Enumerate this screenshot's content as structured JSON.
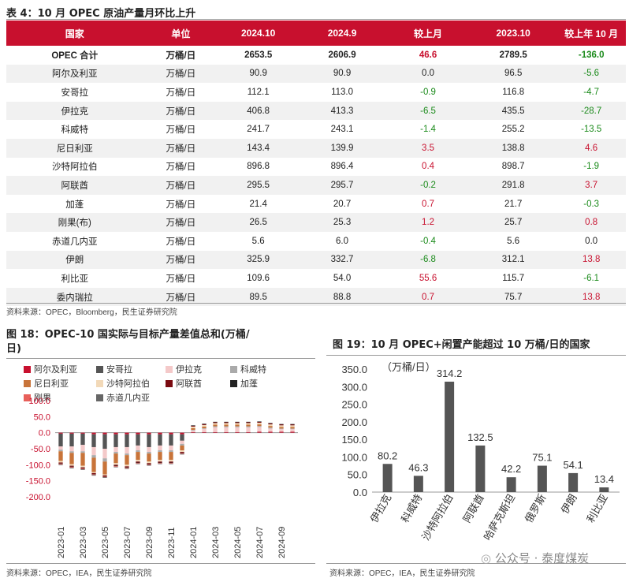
{
  "table": {
    "caption": "表 4：10 月 OPEC 原油产量月环比上升",
    "headers": [
      "国家",
      "单位",
      "2024.10",
      "2024.9",
      "较上月",
      "2023.10",
      "较上年 10 月"
    ],
    "rows": [
      [
        "OPEC 合计",
        "万桶/日",
        "2653.5",
        "2606.9",
        "46.6",
        "2789.5",
        "-136.0"
      ],
      [
        "阿尔及利亚",
        "万桶/日",
        "90.9",
        "90.9",
        "0.0",
        "96.5",
        "-5.6"
      ],
      [
        "安哥拉",
        "万桶/日",
        "112.1",
        "113.0",
        "-0.9",
        "116.8",
        "-4.7"
      ],
      [
        "伊拉克",
        "万桶/日",
        "406.8",
        "413.3",
        "-6.5",
        "435.5",
        "-28.7"
      ],
      [
        "科威特",
        "万桶/日",
        "241.7",
        "243.1",
        "-1.4",
        "255.2",
        "-13.5"
      ],
      [
        "尼日利亚",
        "万桶/日",
        "143.4",
        "139.9",
        "3.5",
        "138.8",
        "4.6"
      ],
      [
        "沙特阿拉伯",
        "万桶/日",
        "896.8",
        "896.4",
        "0.4",
        "898.7",
        "-1.9"
      ],
      [
        "阿联酋",
        "万桶/日",
        "295.5",
        "295.7",
        "-0.2",
        "291.8",
        "3.7"
      ],
      [
        "加蓬",
        "万桶/日",
        "21.4",
        "20.7",
        "0.7",
        "21.7",
        "-0.3"
      ],
      [
        "刚果(布)",
        "万桶/日",
        "26.5",
        "25.3",
        "1.2",
        "25.7",
        "0.8"
      ],
      [
        "赤道几内亚",
        "万桶/日",
        "5.6",
        "6.0",
        "-0.4",
        "5.6",
        "0.0"
      ],
      [
        "伊朗",
        "万桶/日",
        "325.9",
        "332.7",
        "-6.8",
        "312.1",
        "13.8"
      ],
      [
        "利比亚",
        "万桶/日",
        "109.6",
        "54.0",
        "55.6",
        "115.7",
        "-6.1"
      ],
      [
        "委内瑞拉",
        "万桶/日",
        "89.5",
        "88.8",
        "0.7",
        "75.7",
        "13.8"
      ]
    ],
    "source": "资料来源：OPEC，Bloomberg，民生证券研究院"
  },
  "fig18": {
    "caption_line1": "图 18：OPEC-10 国实际与目标产量差值总和(万桶/",
    "caption_line2": "日)",
    "source": "资料来源：OPEC，IEA，民生证券研究院"
  },
  "fig19": {
    "caption": "图 19：10 月 OPEC+闲置产能超过 10 万桶/日的国家",
    "source": "资料来源：OPEC，IEA，民生证券研究院"
  },
  "watermark": "公众号 · 泰度煤炭",
  "chart_data": [
    {
      "type": "bar",
      "stacked": true,
      "ylim": [
        -200,
        100
      ],
      "yticks": [
        "100.0",
        "50.0",
        "0.0",
        "-50.0",
        "-100.0",
        "-150.0",
        "-200.0"
      ],
      "xtick_labels": [
        "2023-01",
        "2023-03",
        "2023-05",
        "2023-07",
        "2023-09",
        "2023-11",
        "2024-01",
        "2024-03",
        "2024-05",
        "2024-07",
        "2024-09"
      ],
      "x": [
        "2023-01",
        "2023-02",
        "2023-03",
        "2023-04",
        "2023-05",
        "2023-06",
        "2023-07",
        "2023-08",
        "2023-09",
        "2023-10",
        "2023-11",
        "2023-12",
        "2024-01",
        "2024-02",
        "2024-03",
        "2024-04",
        "2024-05",
        "2024-06",
        "2024-07",
        "2024-08",
        "2024-09",
        "2024-10"
      ],
      "series": [
        {
          "name": "阿尔及利亚",
          "color": "#c8102e",
          "values": [
            -3,
            -3,
            -3,
            -5,
            -5,
            -5,
            -5,
            -5,
            -5,
            -5,
            -5,
            -5,
            2,
            2,
            2,
            2,
            2,
            2,
            3,
            3,
            3,
            3
          ]
        },
        {
          "name": "安哥拉",
          "color": "#555555",
          "values": [
            -40,
            -40,
            -35,
            -40,
            -45,
            -40,
            -40,
            -35,
            -40,
            -35,
            -35,
            -20,
            0,
            0,
            0,
            0,
            0,
            0,
            0,
            0,
            0,
            0
          ]
        },
        {
          "name": "伊拉克",
          "color": "#f4c9c9",
          "values": [
            -10,
            -15,
            -20,
            -25,
            -30,
            -15,
            -20,
            -15,
            -15,
            -15,
            -15,
            -10,
            5,
            10,
            15,
            15,
            15,
            15,
            15,
            10,
            8,
            8
          ]
        },
        {
          "name": "科威特",
          "color": "#aaaaaa",
          "values": [
            -5,
            -5,
            -5,
            -8,
            -10,
            -5,
            -5,
            -5,
            -5,
            -5,
            -5,
            -5,
            2,
            2,
            3,
            3,
            3,
            3,
            3,
            3,
            2,
            2
          ]
        },
        {
          "name": "尼日利亚",
          "color": "#c8743a",
          "values": [
            -30,
            -35,
            -40,
            -45,
            -40,
            -30,
            -30,
            -25,
            -25,
            -25,
            -25,
            -15,
            5,
            5,
            5,
            5,
            5,
            5,
            5,
            5,
            5,
            5
          ]
        },
        {
          "name": "沙特阿拉伯",
          "color": "#f2d9b8",
          "values": [
            -5,
            -5,
            -5,
            -3,
            -3,
            -5,
            -5,
            -5,
            -5,
            -5,
            -5,
            -5,
            5,
            5,
            5,
            5,
            5,
            5,
            5,
            5,
            5,
            5
          ]
        },
        {
          "name": "阿联酋",
          "color": "#7a0a10",
          "values": [
            -3,
            -3,
            -3,
            -3,
            -3,
            -3,
            -3,
            -3,
            -3,
            -3,
            -3,
            -3,
            3,
            3,
            3,
            3,
            3,
            3,
            3,
            3,
            3,
            3
          ]
        },
        {
          "name": "加蓬",
          "color": "#222222",
          "values": [
            -1,
            -1,
            -1,
            -1,
            -1,
            -1,
            -1,
            -1,
            -1,
            -1,
            -1,
            -1,
            1,
            1,
            1,
            1,
            1,
            1,
            1,
            1,
            1,
            1
          ]
        },
        {
          "name": "刚果",
          "color": "#e8605a",
          "values": [
            -2,
            -2,
            -2,
            -2,
            -2,
            -2,
            -2,
            -2,
            -2,
            -2,
            -2,
            -2,
            0,
            0,
            0,
            0,
            0,
            0,
            0,
            0,
            0,
            0
          ]
        },
        {
          "name": "赤道几内亚",
          "color": "#666666",
          "values": [
            -2,
            -2,
            -2,
            -2,
            -2,
            -2,
            -2,
            -2,
            -2,
            -2,
            -2,
            -2,
            0,
            0,
            0,
            0,
            0,
            0,
            0,
            0,
            0,
            0
          ]
        }
      ]
    },
    {
      "type": "bar",
      "ylabel": "（万桶/日）",
      "ylim": [
        0,
        350
      ],
      "yticks": [
        "350.0",
        "300.0",
        "250.0",
        "200.0",
        "150.0",
        "100.0",
        "50.0",
        "0.0"
      ],
      "categories": [
        "伊拉克",
        "科威特",
        "沙特阿拉伯",
        "阿联酋",
        "哈萨克斯坦",
        "俄罗斯",
        "伊朗",
        "利比亚"
      ],
      "values": [
        80.2,
        46.3,
        314.2,
        132.5,
        42.2,
        75.1,
        54.1,
        13.4
      ],
      "labels": [
        "80.2",
        "46.3",
        "314.2",
        "132.5",
        "42.2",
        "75.1",
        "54.1",
        "13.4"
      ],
      "color": "#555555"
    }
  ]
}
